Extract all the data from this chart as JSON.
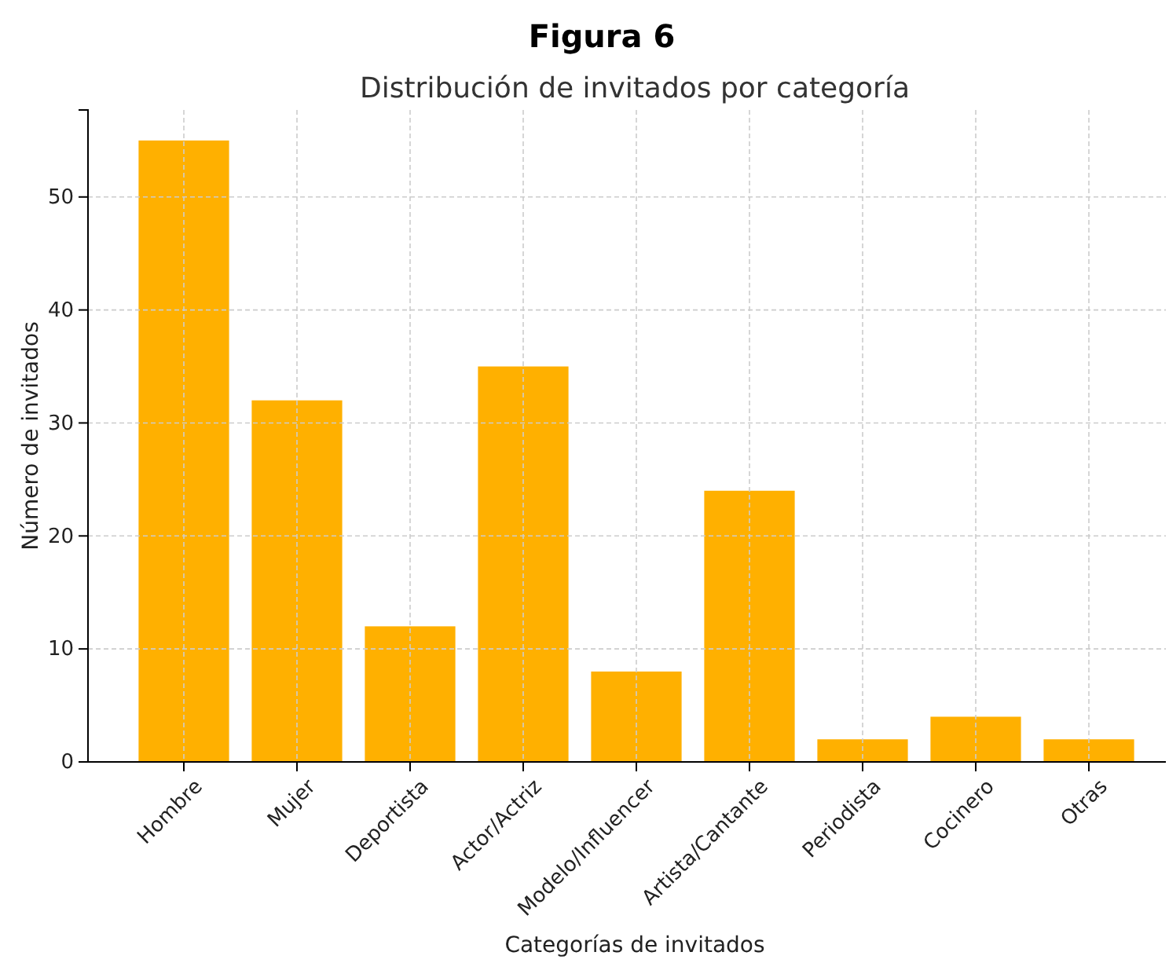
{
  "chart_data": {
    "type": "bar",
    "title": "Figura 6",
    "subtitle": "Distribución de invitados por categoría",
    "xlabel": "Categorías de invitados",
    "ylabel": "Número de invitados",
    "categories": [
      "Hombre",
      "Mujer",
      "Deportista",
      "Actor/Actriz",
      "Modelo/Influencer",
      "Artista/Cantante",
      "Periodista",
      "Cocinero",
      "Otras"
    ],
    "values": [
      55,
      32,
      12,
      35,
      8,
      24,
      2,
      4,
      2
    ],
    "color": "#ffb000",
    "ylim": [
      0,
      57.7
    ],
    "yticks": [
      0,
      10,
      20,
      30,
      40,
      50
    ],
    "grid": true
  }
}
